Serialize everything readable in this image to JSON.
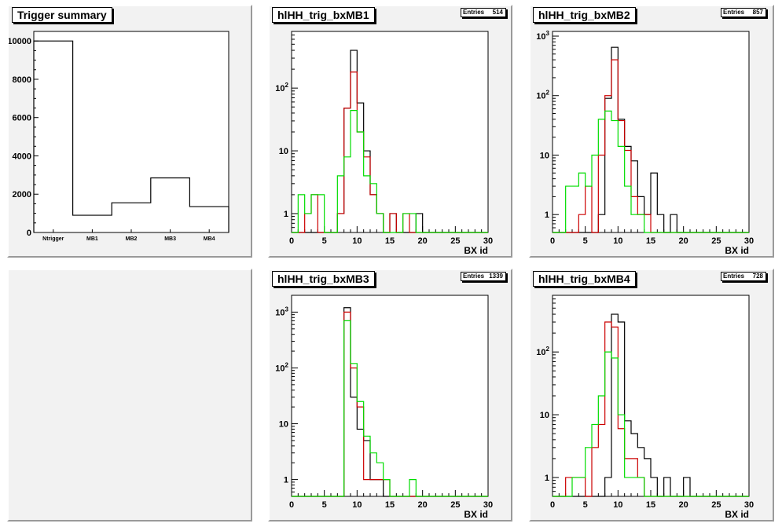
{
  "chart_data": [
    {
      "id": "summary",
      "type": "bar",
      "title": "Trigger summary",
      "categories": [
        "Ntrigger",
        "MB1",
        "MB2",
        "MB3",
        "MB4"
      ],
      "values": [
        10000,
        900,
        1550,
        2850,
        1350
      ],
      "ylim": [
        0,
        10500
      ],
      "yticks": [
        0,
        2000,
        4000,
        6000,
        8000,
        10000
      ],
      "log_y": false
    },
    {
      "id": "mb1",
      "type": "histogram",
      "title": "hlHH_trig_bxMB1",
      "stats": {
        "label": "Entries",
        "value": "514"
      },
      "xlabel": "BX id",
      "xlim": [
        0,
        30
      ],
      "xticks": [
        0,
        5,
        10,
        15,
        20,
        25,
        30
      ],
      "bin_width": 1,
      "log_y": true,
      "yticks": [
        {
          "v": 1,
          "label": "1"
        },
        {
          "v": 10,
          "label": "10"
        },
        {
          "v": 100,
          "label": "10^2"
        }
      ],
      "ylim": [
        0.5,
        800
      ],
      "series": [
        {
          "color": "#000000",
          "values": [
            0,
            0,
            0,
            0,
            0,
            0,
            0,
            1,
            48,
            400,
            58,
            10,
            2,
            1,
            0,
            1,
            0,
            0,
            0,
            1,
            0,
            0,
            0,
            0,
            0,
            0,
            0,
            0,
            0,
            0
          ]
        },
        {
          "color": "#cc0000",
          "values": [
            0,
            0,
            1,
            2,
            0,
            0,
            0,
            1,
            48,
            180,
            20,
            8,
            2,
            1,
            0,
            1,
            0,
            1,
            0,
            0,
            0,
            0,
            0,
            0,
            0,
            0,
            0,
            0,
            0,
            0
          ]
        },
        {
          "color": "#00dd00",
          "values": [
            0,
            2,
            1,
            2,
            2,
            0,
            0,
            4,
            8,
            44,
            20,
            4,
            3,
            1,
            0,
            0,
            0,
            1,
            1,
            0,
            0,
            0,
            0,
            0,
            0,
            0,
            0,
            0,
            0,
            0
          ]
        }
      ]
    },
    {
      "id": "mb2",
      "type": "histogram",
      "title": "hlHH_trig_bxMB2",
      "stats": {
        "label": "Entries",
        "value": "857"
      },
      "xlabel": "BX id",
      "xlim": [
        0,
        30
      ],
      "xticks": [
        0,
        5,
        10,
        15,
        20,
        25,
        30
      ],
      "bin_width": 1,
      "log_y": true,
      "yticks": [
        {
          "v": 1,
          "label": "1"
        },
        {
          "v": 10,
          "label": "10"
        },
        {
          "v": 100,
          "label": "10^2"
        },
        {
          "v": 1000,
          "label": "10^3"
        }
      ],
      "ylim": [
        0.5,
        1200
      ],
      "series": [
        {
          "color": "#000000",
          "values": [
            0,
            0,
            0,
            0,
            0,
            0,
            0,
            1,
            90,
            650,
            40,
            14,
            8,
            2,
            1,
            5,
            1,
            0,
            1,
            0,
            0,
            0,
            0,
            0,
            0,
            0,
            0,
            0,
            0,
            0
          ]
        },
        {
          "color": "#cc0000",
          "values": [
            0,
            0,
            0,
            0,
            1,
            3,
            0,
            10,
            100,
            400,
            38,
            12,
            2,
            1,
            1,
            0,
            0,
            0,
            0,
            0,
            0,
            0,
            0,
            0,
            0,
            0,
            0,
            0,
            0,
            0
          ]
        },
        {
          "color": "#00dd00",
          "values": [
            0,
            0,
            3,
            3,
            5,
            3,
            10,
            40,
            55,
            38,
            14,
            3,
            1,
            1,
            0,
            0,
            0,
            0,
            0,
            0,
            0,
            0,
            0,
            0,
            0,
            0,
            0,
            0,
            0,
            0
          ]
        }
      ]
    },
    {
      "id": "mb3",
      "type": "histogram",
      "title": "hlHH_trig_bxMB3",
      "stats": {
        "label": "Entries",
        "value": "1339"
      },
      "xlabel": "BX id",
      "xlim": [
        0,
        30
      ],
      "xticks": [
        0,
        5,
        10,
        15,
        20,
        25,
        30
      ],
      "bin_width": 1,
      "log_y": true,
      "yticks": [
        {
          "v": 1,
          "label": "1"
        },
        {
          "v": 10,
          "label": "10"
        },
        {
          "v": 100,
          "label": "10^2"
        },
        {
          "v": 1000,
          "label": "10^3"
        }
      ],
      "ylim": [
        0.5,
        2000
      ],
      "series": [
        {
          "color": "#000000",
          "values": [
            0,
            0,
            0,
            0,
            0,
            0,
            0,
            0,
            1200,
            30,
            8,
            5,
            1,
            1,
            0,
            0,
            0,
            0,
            0,
            0,
            0,
            0,
            0,
            0,
            0,
            0,
            0,
            0,
            0,
            0
          ]
        },
        {
          "color": "#cc0000",
          "values": [
            0,
            0,
            0,
            0,
            0,
            0,
            0,
            0,
            1000,
            100,
            20,
            1,
            1,
            1,
            1,
            0,
            0,
            0,
            0,
            0,
            0,
            0,
            0,
            0,
            0,
            0,
            0,
            0,
            0,
            0
          ]
        },
        {
          "color": "#00dd00",
          "values": [
            0,
            0,
            0,
            0,
            0,
            0,
            0,
            0,
            700,
            120,
            25,
            6,
            3,
            2,
            1,
            0,
            0,
            0,
            1,
            0,
            0,
            0,
            0,
            0,
            0,
            0,
            0,
            0,
            0,
            0
          ]
        }
      ]
    },
    {
      "id": "mb4",
      "type": "histogram",
      "title": "hlHH_trig_bxMB4",
      "stats": {
        "label": "Entries",
        "value": "728"
      },
      "xlabel": "BX id",
      "xlim": [
        0,
        30
      ],
      "xticks": [
        0,
        5,
        10,
        15,
        20,
        25,
        30
      ],
      "bin_width": 1,
      "log_y": true,
      "yticks": [
        {
          "v": 1,
          "label": "1"
        },
        {
          "v": 10,
          "label": "10"
        },
        {
          "v": 100,
          "label": "10^2"
        }
      ],
      "ylim": [
        0.5,
        800
      ],
      "series": [
        {
          "color": "#000000",
          "values": [
            0,
            0,
            0,
            0,
            0,
            0,
            0,
            0,
            1,
            400,
            300,
            8,
            5,
            3,
            2,
            1,
            0,
            1,
            0,
            0,
            1,
            0,
            0,
            0,
            0,
            0,
            0,
            0,
            0,
            0
          ]
        },
        {
          "color": "#cc0000",
          "values": [
            0,
            0,
            1,
            1,
            1,
            0,
            3,
            7,
            300,
            250,
            6,
            2,
            2,
            1,
            0,
            0,
            0,
            0,
            0,
            0,
            0,
            0,
            0,
            0,
            0,
            0,
            0,
            0,
            0,
            0
          ]
        },
        {
          "color": "#00dd00",
          "values": [
            0,
            0,
            0,
            1,
            1,
            3,
            7,
            20,
            100,
            80,
            10,
            1,
            1,
            1,
            0,
            0,
            0,
            0,
            0,
            0,
            0,
            0,
            0,
            0,
            0,
            0,
            0,
            0,
            0,
            0
          ]
        }
      ]
    }
  ]
}
